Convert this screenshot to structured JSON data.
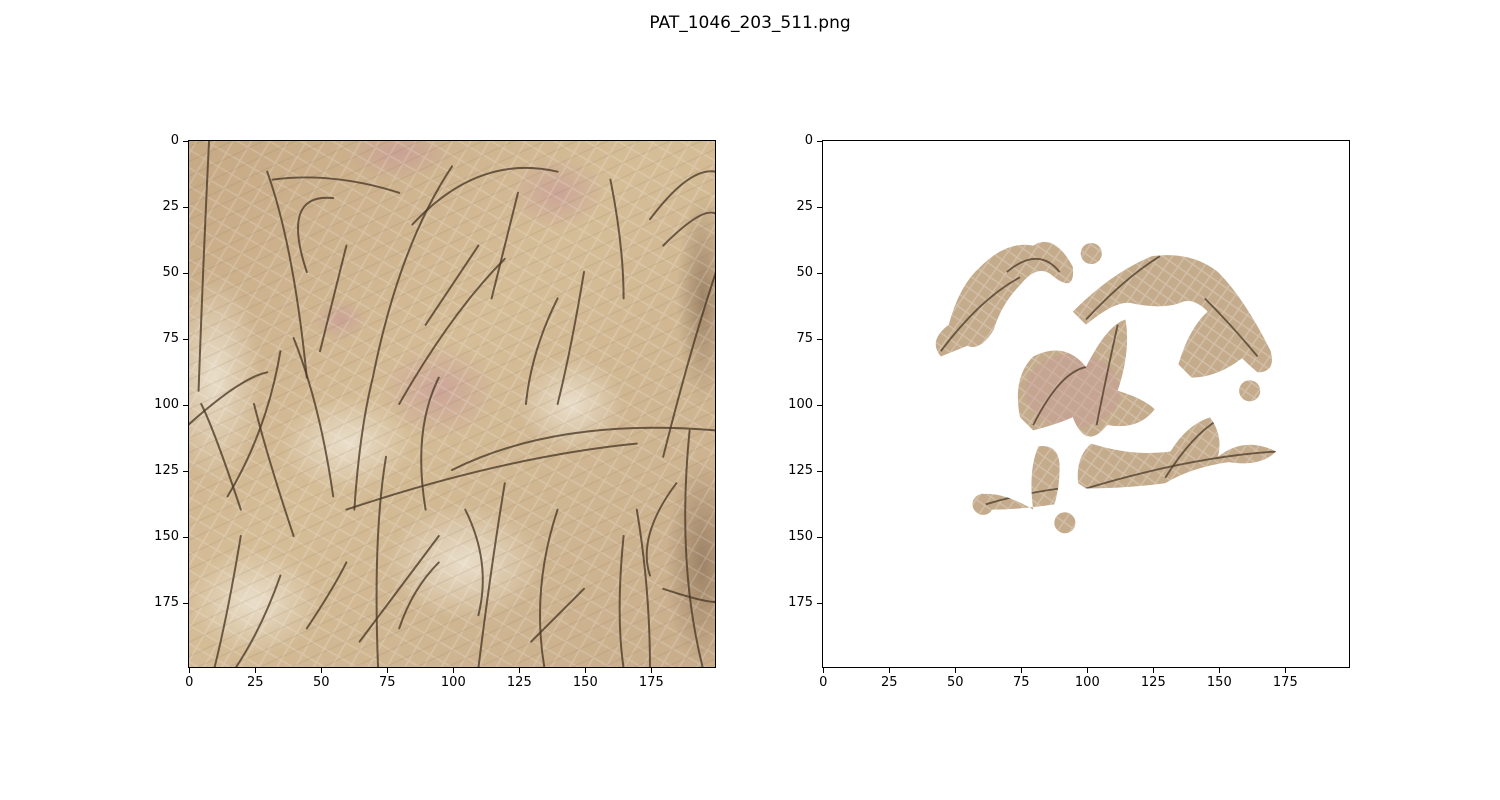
{
  "figure": {
    "title": "PAT_1046_203_511.png"
  },
  "image_size": [
    200,
    200
  ],
  "panels": [
    {
      "name": "original-image",
      "content": "dermoscopy skin patch with dense dark hairs",
      "x_ticks": [
        0,
        25,
        50,
        75,
        100,
        125,
        150,
        175
      ],
      "y_ticks": [
        0,
        25,
        50,
        75,
        100,
        125,
        150,
        175
      ]
    },
    {
      "name": "masked-image",
      "content": "skin patch masked to segmented lesion regions on white background",
      "x_ticks": [
        0,
        25,
        50,
        75,
        100,
        125,
        150,
        175
      ],
      "y_ticks": [
        0,
        25,
        50,
        75,
        100,
        125,
        150,
        175
      ]
    }
  ],
  "colors": {
    "skin_base": "#cdb48e",
    "skin_light": "#e4d3b6",
    "skin_shadow": "#a88b68",
    "hair": "#4a3826",
    "lesion_pink": "#c9a3a0",
    "background": "#ffffff"
  }
}
